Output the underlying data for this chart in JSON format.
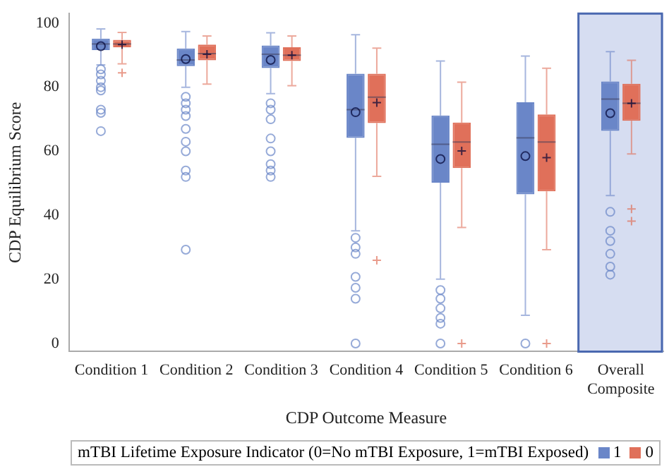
{
  "chart_data": {
    "type": "box",
    "xlabel": "CDP Outcome Measure",
    "ylabel": "CDP Equilibrium Score",
    "legend_title": "mTBI Lifetime Exposure Indicator (0=No mTBI Exposure, 1=mTBI Exposed)",
    "legend": "bottom",
    "grid": false,
    "categories": [
      "Condition 1",
      "Condition 2",
      "Condition 3",
      "Condition 4",
      "Condition 5",
      "Condition 6",
      "Overall Composite"
    ],
    "ylim": [
      -2.5,
      103
    ],
    "yticks": [
      0,
      20,
      40,
      60,
      80,
      100
    ],
    "bands": [
      {
        "axis": "x",
        "from": "Overall Composite",
        "to": "Overall Composite",
        "color": "#d6ddf1"
      }
    ],
    "series": [
      {
        "name": "1",
        "color": "#6a86c8",
        "marker": "circle",
        "boxes": [
          {
            "low": 87,
            "q1": 91.6,
            "median": 93.5,
            "q3": 95.2,
            "high": 98.2,
            "mean": 92.8,
            "outliers": [
              85.6,
              84,
              82,
              80,
              79,
              73,
              72,
              66.3
            ]
          },
          {
            "low": 80,
            "q1": 86.6,
            "median": 88.5,
            "q3": 92.1,
            "high": 97.4,
            "mean": 88.8,
            "outliers": [
              77,
              75,
              73,
              71,
              67,
              63,
              60,
              54,
              52,
              29.3
            ]
          },
          {
            "low": 78,
            "q1": 86,
            "median": 90.3,
            "q3": 93,
            "high": 97,
            "mean": 88.5,
            "outliers": [
              75,
              73,
              70,
              64,
              60,
              56,
              54,
              52
            ]
          },
          {
            "low": 35.2,
            "q1": 64.2,
            "median": 73,
            "q3": 84.2,
            "high": 96.4,
            "mean": 72.2,
            "outliers": [
              33,
              30,
              28,
              20.8,
              17.4,
              14,
              0
            ]
          },
          {
            "low": 20.1,
            "q1": 50.2,
            "median": 62.2,
            "q3": 71.2,
            "high": 88.2,
            "mean": 57.6,
            "outliers": [
              16.7,
              14,
              11,
              8,
              6.2,
              0
            ]
          },
          {
            "low": 8.8,
            "q1": 46.6,
            "median": 64.2,
            "q3": 75.3,
            "high": 89.7,
            "mean": 58.5,
            "outliers": [
              0
            ]
          },
          {
            "low": 46.2,
            "q1": 66.4,
            "median": 76.3,
            "q3": 81.8,
            "high": 91.1,
            "mean": 71.9,
            "outliers": [
              41.1,
              35.2,
              32,
              28,
              24,
              21.5
            ]
          }
        ]
      },
      {
        "name": "0",
        "color": "#e0705a",
        "marker": "cross",
        "boxes": [
          {
            "low": 87.3,
            "q1": 92.5,
            "median": 93.5,
            "q3": 94.8,
            "high": 97.1,
            "mean": 93.3,
            "outliers": [
              84.5
            ]
          },
          {
            "low": 81,
            "q1": 88.4,
            "median": 90.5,
            "q3": 93.3,
            "high": 96,
            "mean": 90.3
          },
          {
            "low": 80.5,
            "q1": 88.2,
            "median": 90,
            "q3": 92.5,
            "high": 96,
            "mean": 90
          },
          {
            "low": 52.2,
            "q1": 68.8,
            "median": 76.9,
            "q3": 84.2,
            "high": 92.2,
            "mean": 75.2,
            "outliers": [
              26
            ]
          },
          {
            "low": 36.2,
            "q1": 54.8,
            "median": 62.9,
            "q3": 69,
            "high": 81.6,
            "mean": 60.1,
            "outliers": [
              0
            ]
          },
          {
            "low": 29.3,
            "q1": 47.5,
            "median": 62.9,
            "q3": 71.5,
            "high": 85.9,
            "mean": 58,
            "outliers": [
              0
            ]
          },
          {
            "low": 59.2,
            "q1": 69.5,
            "median": 75,
            "q3": 81.1,
            "high": 88.4,
            "mean": 75,
            "outliers": [
              42,
              38.2
            ]
          }
        ]
      }
    ]
  }
}
